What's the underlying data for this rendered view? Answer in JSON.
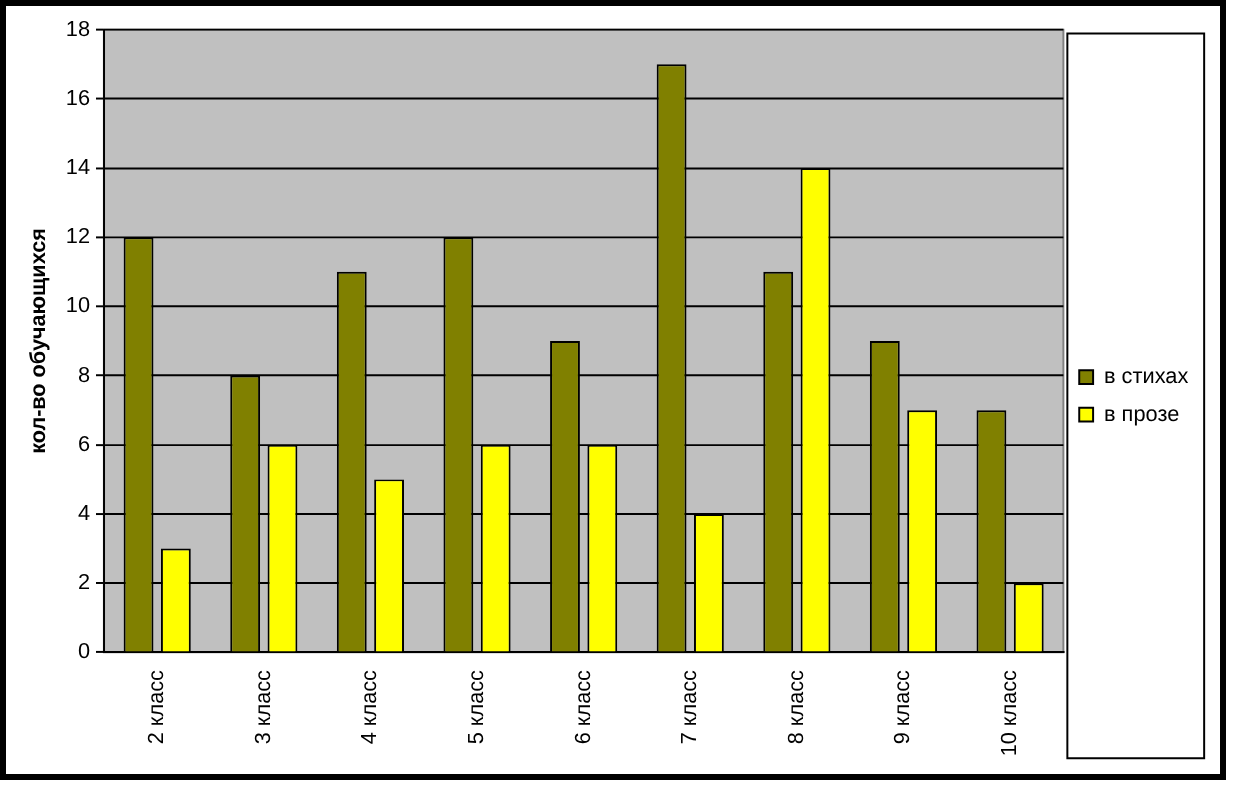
{
  "chart_data": {
    "type": "bar",
    "ylabel": "кол-во обучающихся",
    "categories": [
      "2 класс",
      "3 класс",
      "4 класс",
      "5 класс",
      "6 класс",
      "7 класс",
      "8 класс",
      "9 класс",
      "10 класс"
    ],
    "series": [
      {
        "name": "в стихах",
        "color": "#808000",
        "values": [
          12,
          8,
          11,
          12,
          9,
          17,
          11,
          9,
          7
        ]
      },
      {
        "name": "в прозе",
        "color": "#ffff00",
        "values": [
          3,
          6,
          5,
          6,
          6,
          4,
          14,
          7,
          2
        ]
      }
    ],
    "ylim": [
      0,
      18
    ],
    "yticks": [
      0,
      2,
      4,
      6,
      8,
      10,
      12,
      14,
      16,
      18
    ],
    "grid": "y",
    "legend": "right"
  }
}
